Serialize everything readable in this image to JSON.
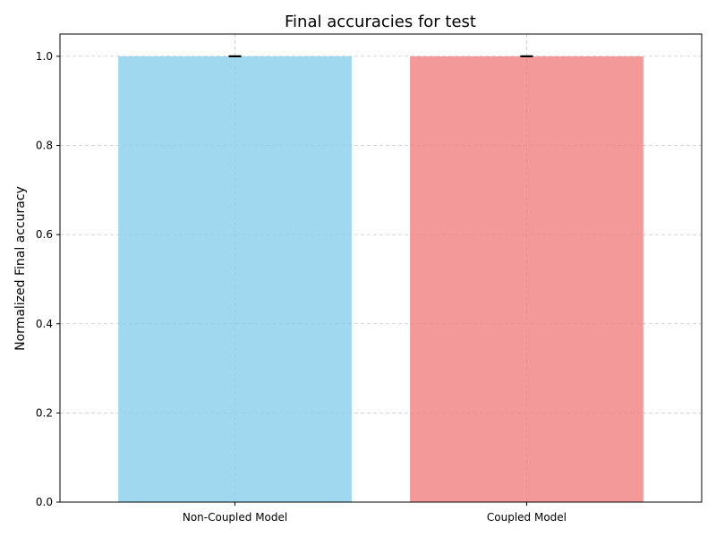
{
  "chart_data": {
    "type": "bar",
    "title": "Final accuracies for test",
    "xlabel": "",
    "ylabel": "Normalized Final accuracy",
    "categories": [
      "Non-Coupled Model",
      "Coupled Model"
    ],
    "values": [
      1.0,
      1.0
    ],
    "errors": [
      0.0,
      0.0
    ],
    "colors": [
      "#87CEEB",
      "#F08080"
    ],
    "bar_opacity": 0.8,
    "ylim": [
      0,
      1.05
    ],
    "yticks": [
      0.0,
      0.2,
      0.4,
      0.6,
      0.8,
      1.0
    ],
    "ytick_labels": [
      "0.0",
      "0.2",
      "0.4",
      "0.6",
      "0.8",
      "1.0"
    ],
    "grid": true
  }
}
